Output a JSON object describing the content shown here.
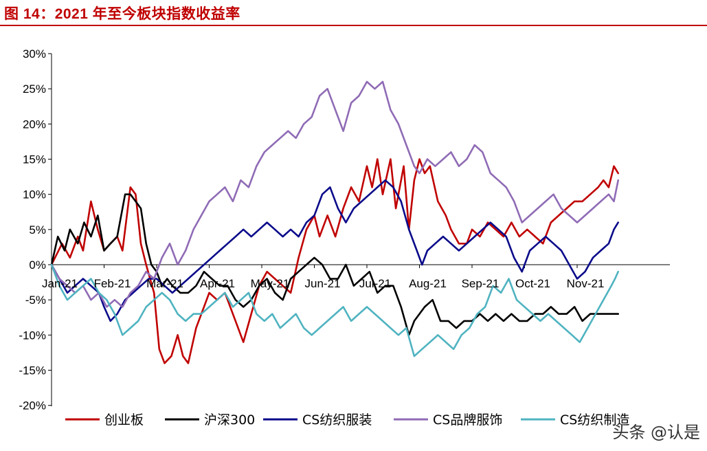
{
  "header": {
    "title": "图 14：2021 年至今板块指数收益率"
  },
  "watermark": "头条 @认是",
  "chart_data": {
    "type": "line",
    "title": "图 14：2021 年至今板块指数收益率",
    "xlabel": "",
    "ylabel": "",
    "ylim": [
      -20,
      30
    ],
    "yticks": [
      -20,
      -15,
      -10,
      -5,
      0,
      5,
      10,
      15,
      20,
      25,
      30
    ],
    "ytick_labels": [
      "-20%",
      "-15%",
      "-10%",
      "-5%",
      "0%",
      "5%",
      "10%",
      "15%",
      "20%",
      "25%",
      "30%"
    ],
    "xlim": [
      0,
      10.78
    ],
    "xticks": [
      0,
      1,
      2,
      3,
      4,
      5,
      6,
      7,
      8,
      9,
      10
    ],
    "xtick_labels": [
      "Jan-21",
      "Feb-21",
      "Mar-21",
      "Apr-21",
      "May-21",
      "Jun-21",
      "Jul-21",
      "Aug-21",
      "Sep-21",
      "Oct-21",
      "Nov-21"
    ],
    "grid": false,
    "legend_position": "bottom",
    "series": [
      {
        "name": "创业板",
        "color": "#c00000",
        "x": [
          0,
          0.2,
          0.35,
          0.5,
          0.6,
          0.75,
          0.88,
          1.0,
          1.12,
          1.25,
          1.35,
          1.5,
          1.6,
          1.7,
          1.8,
          1.95,
          2.05,
          2.15,
          2.28,
          2.4,
          2.5,
          2.6,
          2.75,
          2.9,
          3.0,
          3.15,
          3.3,
          3.5,
          3.65,
          3.8,
          3.95,
          4.1,
          4.25,
          4.4,
          4.55,
          4.7,
          4.85,
          5.0,
          5.1,
          5.25,
          5.4,
          5.55,
          5.7,
          5.85,
          6.0,
          6.1,
          6.2,
          6.3,
          6.45,
          6.55,
          6.7,
          6.8,
          6.9,
          7.0,
          7.1,
          7.2,
          7.35,
          7.5,
          7.6,
          7.75,
          7.9,
          8.0,
          8.15,
          8.3,
          8.45,
          8.6,
          8.75,
          8.9,
          9.05,
          9.2,
          9.35,
          9.5,
          9.65,
          9.8,
          9.95,
          10.1,
          10.25,
          10.4,
          10.5,
          10.6,
          10.7,
          10.78
        ],
        "y": [
          0,
          3,
          1,
          4,
          2,
          9,
          5,
          2,
          3,
          4,
          2,
          11,
          10,
          3,
          0,
          -4,
          -12,
          -14,
          -13,
          -10,
          -13,
          -14,
          -9,
          -6,
          -4,
          -5,
          -4,
          -8,
          -11,
          -7,
          -3,
          -1,
          -2,
          -3,
          -4,
          1,
          5,
          7,
          4,
          7,
          4,
          8,
          11,
          9,
          14,
          11,
          15,
          10,
          15,
          8,
          14,
          5,
          12,
          15,
          13,
          14,
          9,
          7,
          5,
          3,
          3,
          5,
          4,
          6,
          5,
          4,
          6,
          4,
          5,
          4,
          3,
          6,
          7,
          8,
          9,
          9,
          10,
          11,
          12,
          11,
          14,
          13
        ]
      },
      {
        "name": "沪深300",
        "color": "#000000",
        "x": [
          0,
          0.12,
          0.25,
          0.35,
          0.5,
          0.62,
          0.75,
          0.88,
          1.0,
          1.12,
          1.25,
          1.4,
          1.5,
          1.6,
          1.7,
          1.8,
          1.9,
          2.0,
          2.1,
          2.2,
          2.3,
          2.45,
          2.6,
          2.75,
          2.9,
          3.05,
          3.2,
          3.35,
          3.5,
          3.65,
          3.8,
          3.95,
          4.1,
          4.25,
          4.4,
          4.55,
          4.7,
          4.85,
          5.0,
          5.15,
          5.3,
          5.45,
          5.6,
          5.75,
          5.9,
          6.05,
          6.2,
          6.35,
          6.5,
          6.65,
          6.8,
          6.9,
          7.0,
          7.1,
          7.25,
          7.4,
          7.55,
          7.7,
          7.85,
          8.0,
          8.15,
          8.3,
          8.45,
          8.6,
          8.75,
          8.9,
          9.05,
          9.2,
          9.35,
          9.5,
          9.65,
          9.8,
          9.95,
          10.1,
          10.25,
          10.4,
          10.55,
          10.7,
          10.78
        ],
        "y": [
          0,
          4,
          2,
          5,
          3,
          6,
          4,
          7,
          2,
          3,
          4,
          10,
          10,
          9,
          8,
          3,
          0,
          -1,
          -3,
          -2,
          -3,
          -4,
          -4,
          -3,
          -1,
          -2,
          -3,
          -3,
          -5,
          -6,
          -5,
          -3,
          -2,
          -4,
          -5,
          -2,
          -1,
          0,
          1,
          0,
          -2,
          -2,
          0,
          -3,
          -2,
          -1,
          -4,
          -3,
          -3,
          -6,
          -10,
          -8,
          -7,
          -6,
          -5,
          -8,
          -8,
          -9,
          -8,
          -8,
          -7,
          -8,
          -7,
          -8,
          -7,
          -8,
          -8,
          -7,
          -7,
          -6,
          -7,
          -7,
          -6,
          -8,
          -7,
          -7,
          -7,
          -7,
          -7
        ]
      },
      {
        "name": "CS纺织服装",
        "color": "#0a0a8a",
        "x": [
          0,
          0.15,
          0.3,
          0.45,
          0.6,
          0.75,
          0.9,
          1.0,
          1.12,
          1.25,
          1.4,
          1.55,
          1.7,
          1.85,
          2.0,
          2.15,
          2.3,
          2.45,
          2.6,
          2.75,
          2.9,
          3.05,
          3.2,
          3.35,
          3.5,
          3.65,
          3.8,
          3.95,
          4.1,
          4.25,
          4.4,
          4.55,
          4.7,
          4.85,
          5.0,
          5.15,
          5.3,
          5.45,
          5.6,
          5.75,
          5.9,
          6.05,
          6.2,
          6.35,
          6.5,
          6.65,
          6.8,
          6.95,
          7.05,
          7.15,
          7.3,
          7.45,
          7.6,
          7.75,
          7.9,
          8.05,
          8.2,
          8.35,
          8.5,
          8.65,
          8.8,
          8.95,
          9.1,
          9.25,
          9.4,
          9.55,
          9.7,
          9.85,
          10.0,
          10.15,
          10.3,
          10.45,
          10.6,
          10.7,
          10.78
        ],
        "y": [
          0,
          -2,
          -4,
          -3,
          -2,
          -3,
          -4,
          -6,
          -8,
          -7,
          -5,
          -4,
          -3,
          -2,
          -2,
          -3,
          -4,
          -3,
          -2,
          -1,
          0,
          1,
          2,
          3,
          4,
          5,
          4,
          5,
          6,
          5,
          4,
          5,
          4,
          6,
          7,
          10,
          11,
          8,
          6,
          8,
          9,
          10,
          11,
          12,
          11,
          9,
          5,
          2,
          0,
          2,
          3,
          4,
          3,
          2,
          3,
          4,
          5,
          6,
          5,
          4,
          1,
          -1,
          2,
          3,
          4,
          3,
          2,
          0,
          -2,
          -1,
          1,
          2,
          3,
          5,
          6
        ]
      },
      {
        "name": "CS品牌服饰",
        "color": "#8f6bb5",
        "x": [
          0,
          0.15,
          0.3,
          0.45,
          0.6,
          0.75,
          0.9,
          1.05,
          1.2,
          1.35,
          1.5,
          1.65,
          1.8,
          1.95,
          2.1,
          2.25,
          2.4,
          2.55,
          2.7,
          2.85,
          3.0,
          3.15,
          3.3,
          3.45,
          3.6,
          3.75,
          3.9,
          4.05,
          4.2,
          4.35,
          4.5,
          4.65,
          4.8,
          4.95,
          5.1,
          5.25,
          5.4,
          5.55,
          5.7,
          5.85,
          6.0,
          6.15,
          6.3,
          6.45,
          6.6,
          6.75,
          6.9,
          7.0,
          7.15,
          7.3,
          7.45,
          7.6,
          7.75,
          7.9,
          8.05,
          8.2,
          8.35,
          8.5,
          8.65,
          8.8,
          8.95,
          9.1,
          9.25,
          9.4,
          9.55,
          9.7,
          9.85,
          10.0,
          10.15,
          10.3,
          10.45,
          10.6,
          10.7,
          10.78
        ],
        "y": [
          0,
          -2,
          -3,
          -4,
          -3,
          -5,
          -4,
          -6,
          -5,
          -6,
          -4,
          -3,
          -1,
          -2,
          1,
          3,
          0,
          2,
          5,
          7,
          9,
          10,
          11,
          9,
          12,
          11,
          14,
          16,
          17,
          18,
          19,
          18,
          20,
          21,
          24,
          25,
          22,
          19,
          23,
          24,
          26,
          25,
          26,
          22,
          20,
          17,
          14,
          13,
          15,
          14,
          15,
          16,
          14,
          15,
          17,
          16,
          13,
          12,
          11,
          9,
          6,
          7,
          8,
          9,
          10,
          8,
          7,
          6,
          7,
          8,
          9,
          10,
          9,
          12
        ]
      },
      {
        "name": "CS纺织制造",
        "color": "#4fb3c0",
        "x": [
          0,
          0.15,
          0.3,
          0.45,
          0.6,
          0.75,
          0.9,
          1.05,
          1.2,
          1.35,
          1.5,
          1.65,
          1.8,
          1.95,
          2.1,
          2.25,
          2.4,
          2.55,
          2.7,
          2.85,
          3.0,
          3.15,
          3.3,
          3.45,
          3.6,
          3.75,
          3.9,
          4.05,
          4.2,
          4.35,
          4.5,
          4.65,
          4.8,
          4.95,
          5.1,
          5.25,
          5.4,
          5.55,
          5.7,
          5.85,
          6.0,
          6.15,
          6.3,
          6.45,
          6.6,
          6.75,
          6.9,
          7.05,
          7.2,
          7.35,
          7.5,
          7.65,
          7.8,
          7.95,
          8.1,
          8.25,
          8.4,
          8.55,
          8.7,
          8.85,
          9.0,
          9.15,
          9.3,
          9.45,
          9.6,
          9.75,
          9.9,
          10.05,
          10.2,
          10.35,
          10.5,
          10.65,
          10.72,
          10.78
        ],
        "y": [
          0,
          -3,
          -5,
          -4,
          -3,
          -2,
          -4,
          -5,
          -7,
          -10,
          -9,
          -8,
          -6,
          -5,
          -4,
          -5,
          -7,
          -8,
          -7,
          -7,
          -6,
          -5,
          -4,
          -6,
          -5,
          -4,
          -7,
          -8,
          -7,
          -9,
          -8,
          -7,
          -9,
          -10,
          -9,
          -8,
          -7,
          -6,
          -8,
          -7,
          -6,
          -7,
          -8,
          -9,
          -10,
          -9,
          -13,
          -12,
          -11,
          -10,
          -11,
          -12,
          -10,
          -9,
          -7,
          -6,
          -3,
          -4,
          -2,
          -5,
          -6,
          -7,
          -8,
          -7,
          -8,
          -9,
          -10,
          -11,
          -9,
          -7,
          -5,
          -3,
          -2,
          -1
        ]
      }
    ]
  }
}
